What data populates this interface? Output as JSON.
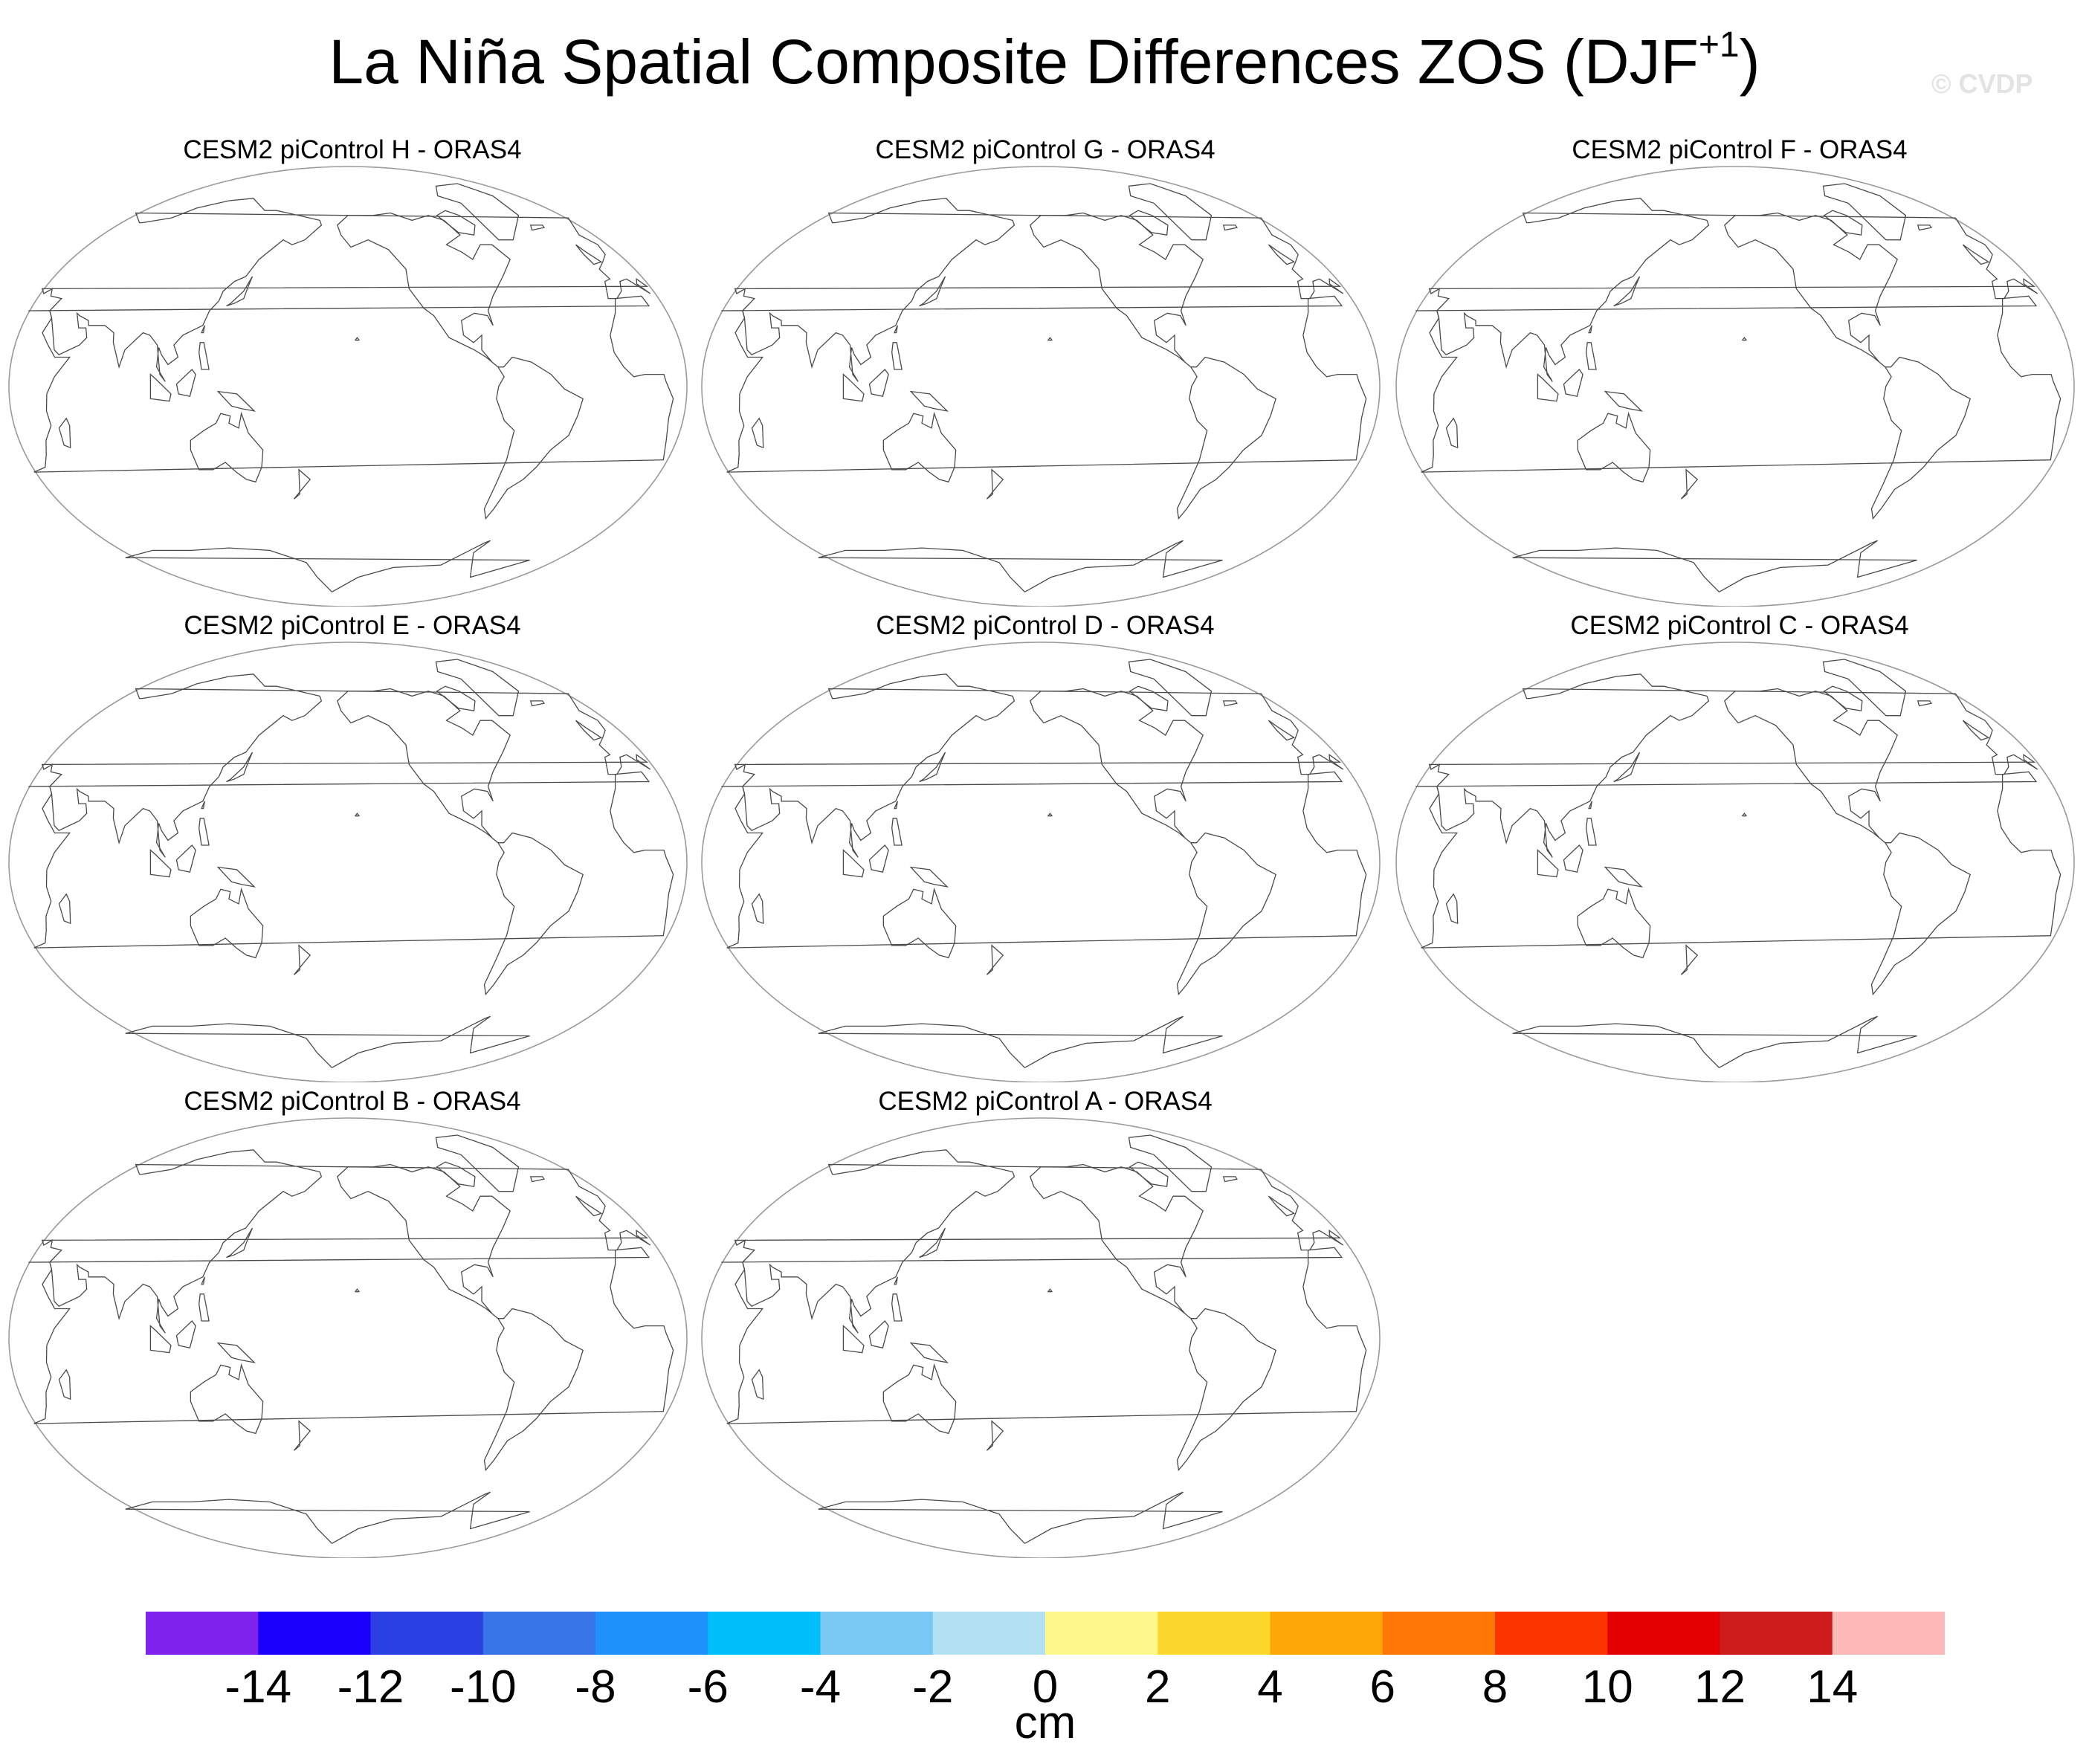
{
  "title": {
    "main": "La Niña Spatial Composite Differences ZOS (DJF",
    "superscript": "+1",
    "close": ")"
  },
  "watermark": "© CVDP",
  "panels": [
    {
      "title": "CESM2 piControl H - ORAS4"
    },
    {
      "title": "CESM2 piControl G - ORAS4"
    },
    {
      "title": "CESM2 piControl F - ORAS4"
    },
    {
      "title": "CESM2 piControl E - ORAS4"
    },
    {
      "title": "CESM2 piControl D - ORAS4"
    },
    {
      "title": "CESM2 piControl C - ORAS4"
    },
    {
      "title": "CESM2 piControl B - ORAS4"
    },
    {
      "title": "CESM2 piControl A - ORAS4"
    }
  ],
  "colorbar": {
    "units": "cm",
    "levels": [
      -14,
      -12,
      -10,
      -8,
      -6,
      -4,
      -2,
      0,
      2,
      4,
      6,
      8,
      10,
      12,
      14
    ],
    "tick_labels": [
      "-14",
      "-12",
      "-10",
      "-8",
      "-6",
      "-4",
      "-2",
      "0",
      "2",
      "4",
      "6",
      "8",
      "10",
      "12",
      "14"
    ],
    "colors": [
      "#8022ee",
      "#1b00fb",
      "#2a40e3",
      "#3575e8",
      "#1e91fb",
      "#00bffb",
      "#78c9f2",
      "#b4e0f4",
      "#fdf78c",
      "#fdd82c",
      "#fda808",
      "#fd7804",
      "#fb3400",
      "#e40000",
      "#cc1c1c",
      "#fdb8b8"
    ]
  }
}
